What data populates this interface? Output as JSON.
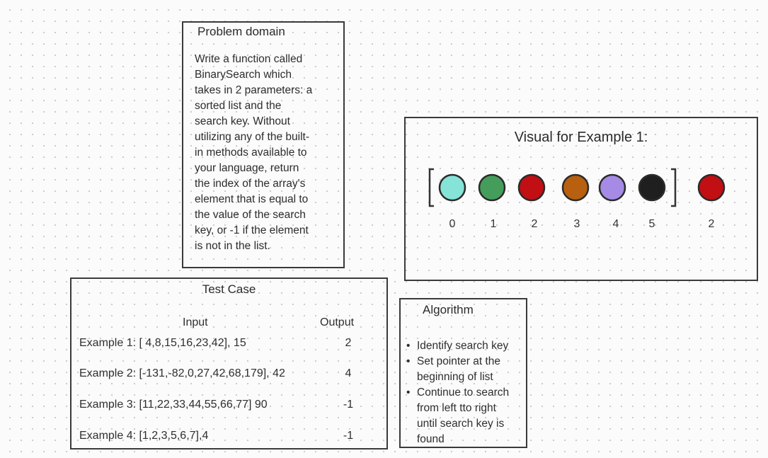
{
  "problem_domain": {
    "title": "Problem domain",
    "lines": [
      "Write a function called",
      "BinarySearch which",
      "takes in 2 parameters: a",
      "sorted list and the",
      "search key. Without",
      "utilizing any of the built-",
      "in methods available to",
      "your language, return",
      "the index of the array's",
      "element that is equal to",
      "the value of the search",
      "key, or -1 if the element",
      "is not in the list."
    ]
  },
  "test_case": {
    "title": "Test Case",
    "input_header": "Input",
    "output_header": "Output",
    "rows": [
      {
        "input": "Example 1: [ 4,8,15,16,23,42], 15",
        "output": "2"
      },
      {
        "input": "Example 2: [-131,-82,0,27,42,68,179], 42",
        "output": "4"
      },
      {
        "input": "Example 3: [11,22,33,44,55,66,77] 90",
        "output": "-1"
      },
      {
        "input": "Example 4: [1,2,3,5,6,7],4",
        "output": "-1"
      }
    ]
  },
  "visual": {
    "title": "Visual for Example 1:",
    "array": [
      {
        "index_label": "0",
        "color": "#86e3d8"
      },
      {
        "index_label": "1",
        "color": "#459d5c"
      },
      {
        "index_label": "2",
        "color": "#c10f14"
      },
      {
        "index_label": "3",
        "color": "#b8600f"
      },
      {
        "index_label": "4",
        "color": "#a58be6"
      },
      {
        "index_label": "5",
        "color": "#1f1f1f"
      }
    ],
    "result": {
      "label": "2",
      "color": "#c10f14"
    }
  },
  "algorithm": {
    "title": "Algorithm",
    "bullet": "•",
    "steps": [
      [
        "Identify search key"
      ],
      [
        "Set pointer at the",
        "beginning of list"
      ],
      [
        "Continue to search",
        "from left tto right",
        "until search key is",
        "found"
      ]
    ]
  }
}
